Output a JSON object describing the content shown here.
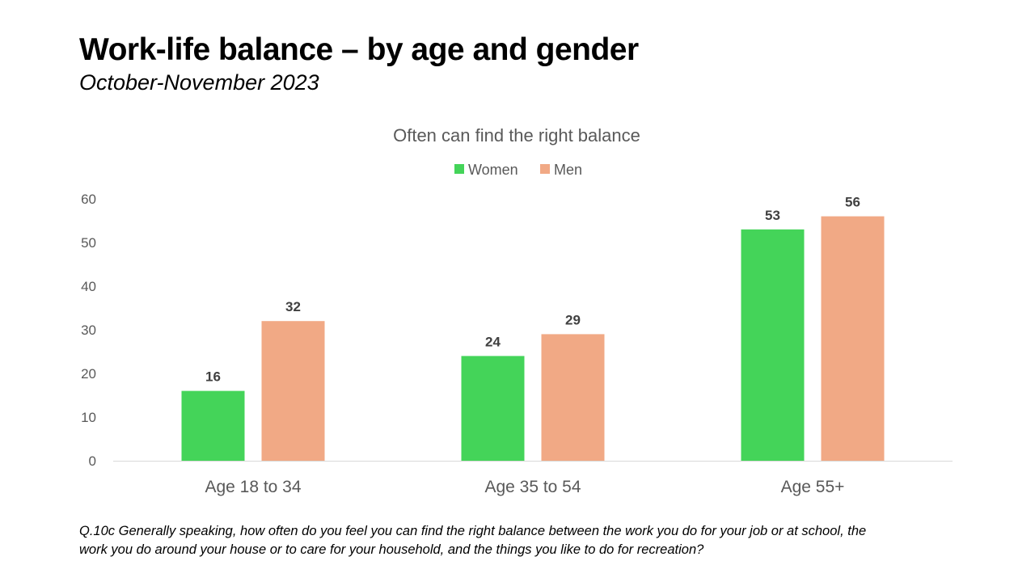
{
  "slide": {
    "title": "Work-life balance – by age and gender",
    "subtitle": "October-November 2023"
  },
  "chart_data": {
    "type": "bar",
    "title": "Often can find the right balance",
    "xlabel": "",
    "ylabel": "",
    "categories": [
      "Age 18 to 34",
      "Age 35 to 54",
      "Age 55+"
    ],
    "series": [
      {
        "name": "Women",
        "values": [
          16,
          24,
          53
        ],
        "color": "#44d459"
      },
      {
        "name": "Men",
        "values": [
          32,
          29,
          56
        ],
        "color": "#f1a985"
      }
    ],
    "ylim": [
      0,
      60
    ],
    "yticks": [
      0,
      10,
      20,
      30,
      40,
      50,
      60
    ],
    "grid": false,
    "legend": "top-center",
    "data_labels": true
  },
  "footnote": {
    "line1": "Q.10c Generally speaking, how often do you feel you can find the right balance between the work you do for your job or at school, the",
    "line2": "work you do around your house or to care for your household, and the things you like to do for recreation?"
  }
}
